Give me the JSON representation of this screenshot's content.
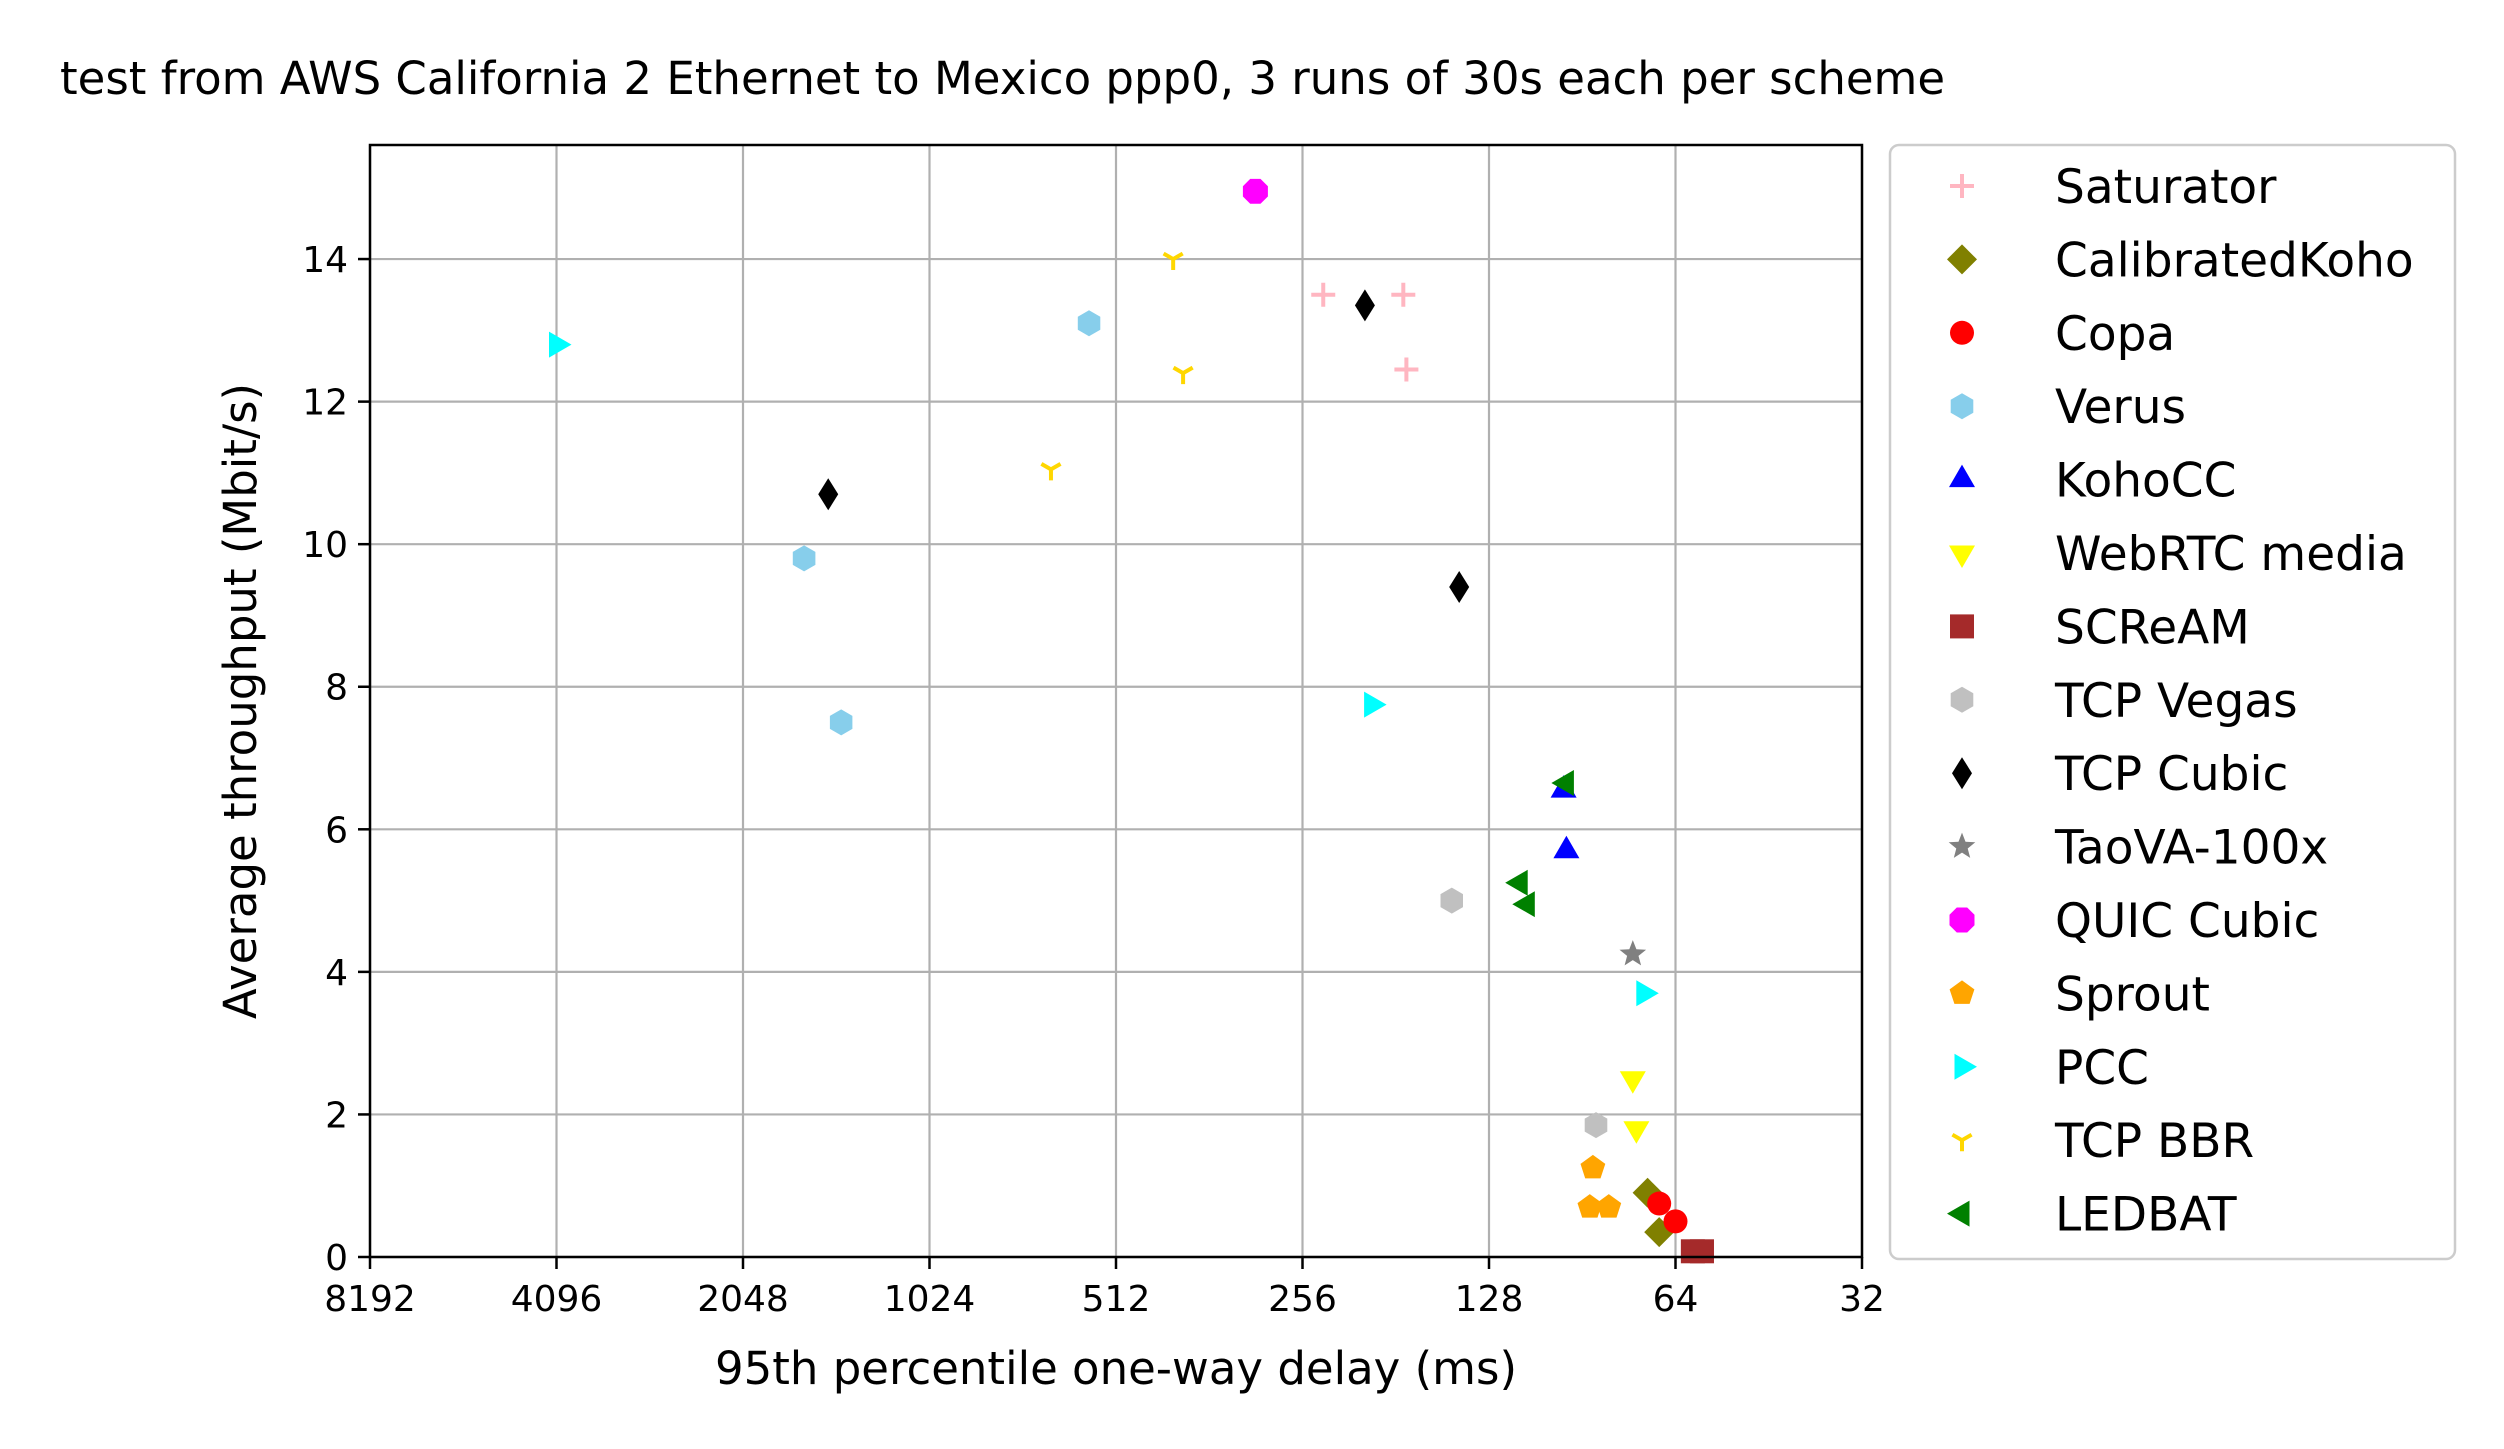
{
  "chart_data": {
    "type": "scatter",
    "title": "test from AWS California 2 Ethernet to Mexico ppp0, 3 runs of 30s each per scheme",
    "xlabel": "95th percentile one-way delay (ms)",
    "ylabel": "Average throughput (Mbit/s)",
    "x_scale": "log2",
    "x_inverted": true,
    "xlim": [
      8192,
      32
    ],
    "ylim": [
      0,
      15.6
    ],
    "xticks": [
      8192,
      4096,
      2048,
      1024,
      512,
      256,
      128,
      64,
      32
    ],
    "xtick_labels": [
      "8192",
      "4096",
      "2048",
      "1024",
      "512",
      "256",
      "128",
      "64",
      "32"
    ],
    "yticks": [
      0,
      2,
      4,
      6,
      8,
      10,
      12,
      14
    ],
    "ytick_labels": [
      "0",
      "2",
      "4",
      "6",
      "8",
      "10",
      "12",
      "14"
    ],
    "grid": true,
    "legend_position": "outside-right",
    "series": [
      {
        "name": "Saturator",
        "marker": "plus",
        "color": "#ffb6c1",
        "points": [
          [
            237,
            13.5
          ],
          [
            176,
            13.5
          ],
          [
            174,
            12.45
          ]
        ]
      },
      {
        "name": "CalibratedKoho",
        "marker": "diamond",
        "color": "#808000",
        "points": [
          [
            71,
            0.9
          ],
          [
            68,
            0.35
          ]
        ]
      },
      {
        "name": "Copa",
        "marker": "circle",
        "color": "#ff0000",
        "points": [
          [
            68,
            0.75
          ],
          [
            64,
            0.5
          ]
        ]
      },
      {
        "name": "Verus",
        "marker": "hexagon",
        "color": "#87ceeb",
        "points": [
          [
            566,
            13.1
          ],
          [
            1632,
            9.8
          ],
          [
            1422,
            7.5
          ]
        ]
      },
      {
        "name": "KohoCC",
        "marker": "triangle-up",
        "color": "#0000ff",
        "points": [
          [
            97,
            6.55
          ],
          [
            96,
            5.7
          ]
        ]
      },
      {
        "name": "WebRTC media",
        "marker": "triangle-down",
        "color": "#ffff00",
        "points": [
          [
            75,
            2.5
          ],
          [
            74,
            1.8
          ]
        ]
      },
      {
        "name": "SCReAM",
        "marker": "square",
        "color": "#a52a2a",
        "points": [
          [
            60,
            0.08
          ],
          [
            58,
            0.08
          ]
        ]
      },
      {
        "name": "TCP Vegas",
        "marker": "hexagon",
        "color": "#c0c0c0",
        "points": [
          [
            147,
            5.0
          ],
          [
            86,
            1.85
          ]
        ]
      },
      {
        "name": "TCP Cubic",
        "marker": "thin-diamond",
        "color": "#000000",
        "points": [
          [
            1492,
            10.7
          ],
          [
            203,
            13.35
          ],
          [
            143,
            9.4
          ]
        ]
      },
      {
        "name": "TaoVA-100x",
        "marker": "star",
        "color": "#808080",
        "points": [
          [
            75,
            4.25
          ]
        ]
      },
      {
        "name": "QUIC Cubic",
        "marker": "octagon",
        "color": "#ff00ff",
        "points": [
          [
            305,
            14.95
          ]
        ]
      },
      {
        "name": "Sprout",
        "marker": "pentagon",
        "color": "#ffa500",
        "points": [
          [
            87,
            1.25
          ],
          [
            88,
            0.7
          ],
          [
            82,
            0.7
          ]
        ]
      },
      {
        "name": "PCC",
        "marker": "triangle-right",
        "color": "#00ffff",
        "points": [
          [
            4096,
            12.8
          ],
          [
            198,
            7.75
          ],
          [
            72,
            3.7
          ]
        ]
      },
      {
        "name": "TCP BBR",
        "marker": "tri-down",
        "color": "#ffd700",
        "points": [
          [
            414,
            14.0
          ],
          [
            399,
            12.4
          ],
          [
            652,
            11.05
          ]
        ]
      },
      {
        "name": "LEDBAT",
        "marker": "triangle-left",
        "color": "#008000",
        "points": [
          [
            96,
            6.65
          ],
          [
            114,
            5.25
          ],
          [
            111,
            4.95
          ]
        ]
      }
    ]
  }
}
